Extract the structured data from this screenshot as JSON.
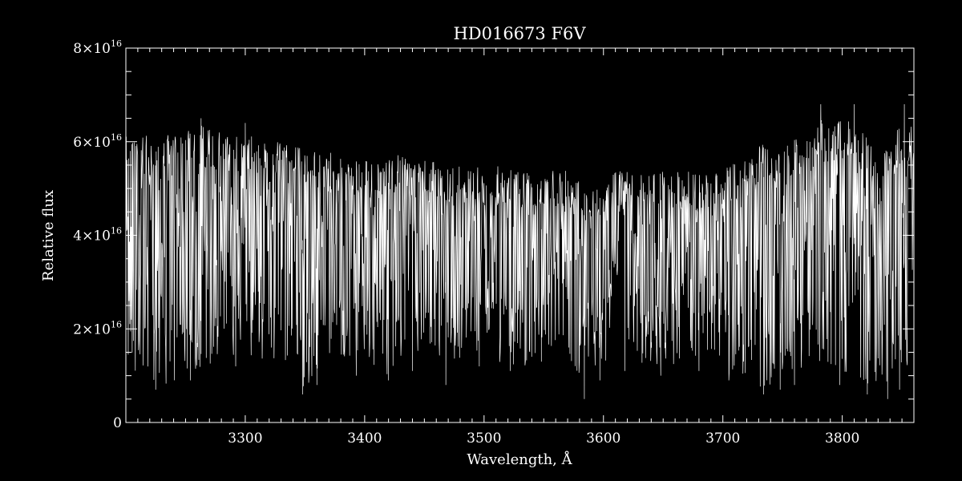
{
  "chart_data": {
    "type": "line",
    "title": "HD016673  F6V",
    "xlabel": "Wavelength, Å",
    "ylabel": "Relative flux",
    "xlim": [
      3200,
      3860
    ],
    "ylim": [
      0,
      8e+16
    ],
    "x_ticks": [
      {
        "value": 3300,
        "label": "3300"
      },
      {
        "value": 3400,
        "label": "3400"
      },
      {
        "value": 3500,
        "label": "3500"
      },
      {
        "value": 3600,
        "label": "3600"
      },
      {
        "value": 3700,
        "label": "3700"
      },
      {
        "value": 3800,
        "label": "3800"
      }
    ],
    "y_ticks": [
      {
        "value": 0,
        "mantissa": "0",
        "exponent": ""
      },
      {
        "value": 2e+16,
        "mantissa": "2×10",
        "exponent": "16"
      },
      {
        "value": 4e+16,
        "mantissa": "4×10",
        "exponent": "16"
      },
      {
        "value": 6e+16,
        "mantissa": "6×10",
        "exponent": "16"
      },
      {
        "value": 8e+16,
        "mantissa": "8×10",
        "exponent": "16"
      }
    ],
    "x_minor_step": 10,
    "y_minor_step": 5000000000000000.0,
    "line_color": "#ffffff",
    "background": "#000000",
    "grid": false,
    "series": [
      {
        "x": [
          3200,
          3210,
          3220,
          3230,
          3240,
          3250,
          3260,
          3270,
          3280,
          3290,
          3300,
          3310,
          3320,
          3330,
          3340,
          3350,
          3360,
          3370,
          3380,
          3390,
          3400,
          3410,
          3420,
          3430,
          3440,
          3450,
          3460,
          3470,
          3480,
          3490,
          3500,
          3510,
          3520,
          3530,
          3540,
          3550,
          3560,
          3570,
          3580,
          3590,
          3600,
          3610,
          3620,
          3630,
          3640,
          3650,
          3660,
          3670,
          3680,
          3690,
          3700,
          3710,
          3720,
          3730,
          3740,
          3750,
          3760,
          3770,
          3780,
          3790,
          3800,
          3810,
          3820,
          3830,
          3840,
          3850,
          3860
        ],
        "upper": [
          6.3e+16,
          6.2e+16,
          6.1e+16,
          6.2e+16,
          6.1e+16,
          6.2e+16,
          6.4e+16,
          6.3e+16,
          6.2e+16,
          6.1e+16,
          6.2e+16,
          6.1e+16,
          6e+16,
          6e+16,
          5.9e+16,
          5.9e+16,
          5.8e+16,
          5.8e+16,
          5.8e+16,
          5.8e+16,
          5.7e+16,
          5.7e+16,
          5.8e+16,
          5.7e+16,
          5.6e+16,
          5.6e+16,
          5.6e+16,
          5.5e+16,
          5.5e+16,
          5.5e+16,
          5.4e+16,
          5.5e+16,
          5.5e+16,
          5.4e+16,
          5.4e+16,
          5.3e+16,
          5.4e+16,
          5.4e+16,
          5.3e+16,
          5.3e+16,
          5.3e+16,
          5.4e+16,
          5.4e+16,
          5.3e+16,
          5.3e+16,
          5.4e+16,
          5.4e+16,
          5.4e+16,
          5.3e+16,
          5.3e+16,
          5.4e+16,
          5.6e+16,
          5.7e+16,
          5.9e+16,
          6e+16,
          5.8e+16,
          6.2e+16,
          6e+16,
          6.6e+16,
          6.3e+16,
          6.7e+16,
          6.4e+16,
          6.2e+16,
          5.5e+16,
          6e+16,
          6.5e+16,
          6.4e+16
        ],
        "lower": [
          1.2e+16,
          1e+16,
          9000000000000000.0,
          8000000000000000.0,
          8000000000000000.0,
          1e+16,
          1.1e+16,
          1.2e+16,
          1.3e+16,
          1.4e+16,
          1.4e+16,
          1.3e+16,
          1.4e+16,
          1.3e+16,
          1.2e+16,
          7000000000000000.0,
          1.1e+16,
          1.3e+16,
          1.2e+16,
          1.3e+16,
          1.3e+16,
          1e+16,
          1e+16,
          1.2e+16,
          1.3e+16,
          1.4e+16,
          1.2e+16,
          1e+16,
          1.4e+16,
          1.5e+16,
          1.4e+16,
          1.3e+16,
          1.2e+16,
          1.1e+16,
          1.3e+16,
          1.4e+16,
          1.5e+16,
          1.2e+16,
          8000000000000000.0,
          1e+16,
          1.3e+16,
          1.4e+16,
          1.4e+16,
          1.3e+16,
          1.2e+16,
          1.1e+16,
          1.2e+16,
          1.3e+16,
          1.2e+16,
          1.1e+16,
          1e+16,
          1.1e+16,
          1e+16,
          7000000000000000.0,
          8000000000000000.0,
          9000000000000000.0,
          1e+16,
          1.2e+16,
          1.3e+16,
          1.2e+16,
          1.1e+16,
          9000000000000000.0,
          8000000000000000.0,
          9000000000000000.0,
          7000000000000000.0,
          1e+16,
          1.2e+16
        ],
        "dips": [
          {
            "x": 3225,
            "y": 7000000000000000.0
          },
          {
            "x": 3254,
            "y": 9000000000000000.0
          },
          {
            "x": 3292,
            "y": 1.2e+16
          },
          {
            "x": 3348,
            "y": 6000000000000000.0
          },
          {
            "x": 3360,
            "y": 8000000000000000.0
          },
          {
            "x": 3393,
            "y": 1e+16
          },
          {
            "x": 3420,
            "y": 9000000000000000.0
          },
          {
            "x": 3440,
            "y": 1.1e+16
          },
          {
            "x": 3468,
            "y": 8000000000000000.0
          },
          {
            "x": 3496,
            "y": 1.2e+16
          },
          {
            "x": 3522,
            "y": 1.1e+16
          },
          {
            "x": 3548,
            "y": 1.3e+16
          },
          {
            "x": 3584,
            "y": 5000000000000000.0
          },
          {
            "x": 3597,
            "y": 9000000000000000.0
          },
          {
            "x": 3618,
            "y": 1.1e+16
          },
          {
            "x": 3648,
            "y": 1e+16
          },
          {
            "x": 3680,
            "y": 1.1e+16
          },
          {
            "x": 3705,
            "y": 9000000000000000.0
          },
          {
            "x": 3734,
            "y": 6000000000000000.0
          },
          {
            "x": 3748,
            "y": 7000000000000000.0
          },
          {
            "x": 3760,
            "y": 8000000000000000.0
          },
          {
            "x": 3798,
            "y": 8000000000000000.0
          },
          {
            "x": 3821,
            "y": 6000000000000000.0
          },
          {
            "x": 3838,
            "y": 5000000000000000.0
          },
          {
            "x": 3848,
            "y": 7000000000000000.0
          }
        ],
        "peaks": [
          {
            "x": 3782,
            "y": 6.8e+16
          },
          {
            "x": 3810,
            "y": 6.8e+16
          },
          {
            "x": 3852,
            "y": 6.8e+16
          },
          {
            "x": 3300,
            "y": 6.4e+16
          },
          {
            "x": 3263,
            "y": 6.5e+16
          }
        ]
      }
    ]
  }
}
